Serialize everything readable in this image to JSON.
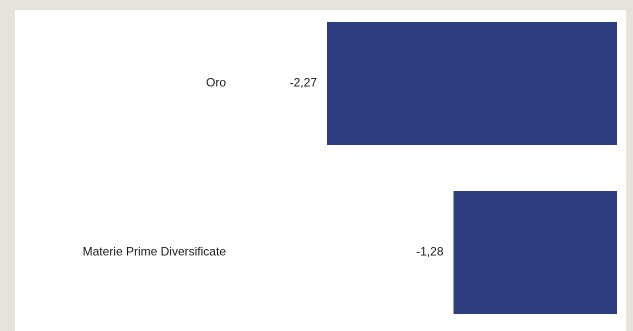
{
  "colors": {
    "background": "#e7e2dc",
    "panel": "#ffffff",
    "bar": "#2e3d80",
    "text": "#1a1a1a"
  },
  "chart_data": {
    "type": "bar",
    "orientation": "horizontal",
    "categories": [
      "Oro",
      "Materie Prime Diversificate"
    ],
    "values": [
      -2.27,
      -1.28
    ],
    "value_labels": [
      "-2,27",
      "-1,28"
    ],
    "xlim": [
      -2.27,
      0
    ],
    "grid": false,
    "legend": "none"
  }
}
